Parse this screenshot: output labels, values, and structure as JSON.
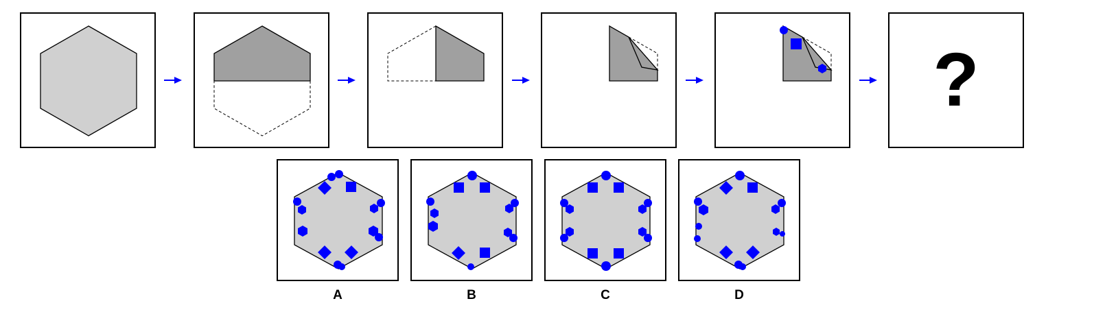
{
  "puzzle": {
    "question_mark": "?",
    "options": [
      {
        "label": "A"
      },
      {
        "label": "B"
      },
      {
        "label": "C"
      },
      {
        "label": "D"
      }
    ]
  },
  "colors": {
    "paper": "#d0d0d0",
    "paper_folded": "#a0a0a0",
    "outline": "#000000",
    "punch": "#0000ff",
    "arrow": "#0000ff"
  },
  "icons": {
    "arrow": "right-arrow-icon",
    "punches": [
      "circle-punch",
      "square-punch",
      "hexagon-punch",
      "diamond-punch"
    ]
  }
}
